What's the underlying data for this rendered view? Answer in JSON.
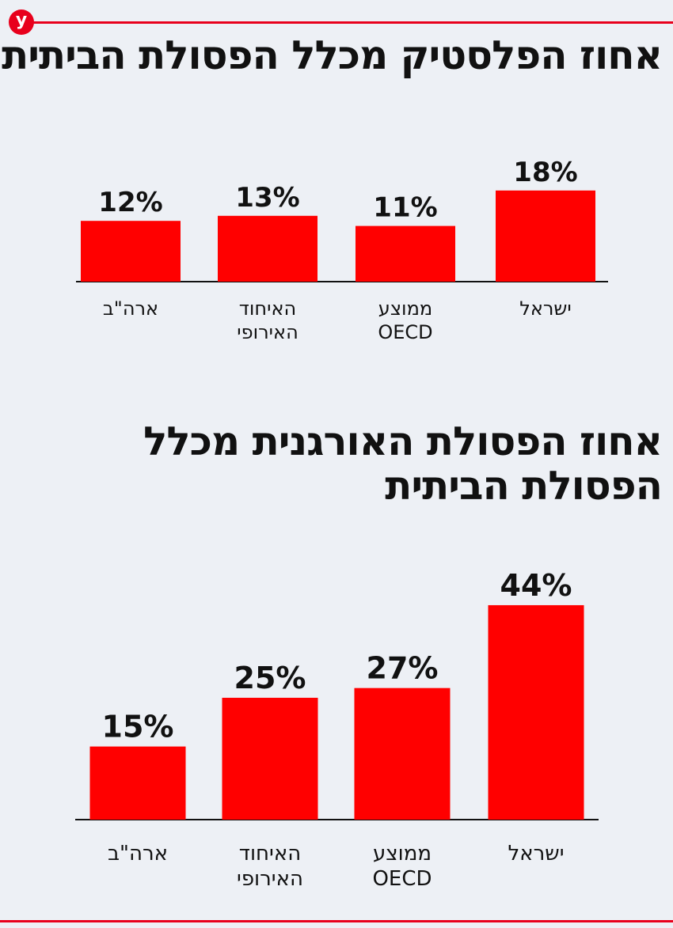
{
  "brand": {
    "logo_letter": "y",
    "accent": "#e8001c",
    "background": "#edf0f5"
  },
  "chart_data": [
    {
      "type": "bar",
      "title": "אחוז הפלסטיק מכלל הפסולת הביתית",
      "categories": [
        "ארה\"ב",
        "האיחוד האירופי",
        "ממוצע OECD",
        "ישראל"
      ],
      "category_lines": [
        [
          "ארה\"ב"
        ],
        [
          "האיחוד",
          "האירופי"
        ],
        [
          "ממוצע",
          "OECD"
        ],
        [
          "ישראל"
        ]
      ],
      "values": [
        12,
        13,
        11,
        18
      ],
      "value_labels": [
        "12%",
        "13%",
        "11%",
        "18%"
      ],
      "unit": "%",
      "bar_color": "#ff0000",
      "grid": false
    },
    {
      "type": "bar",
      "title": "אחוז הפסולת האורגנית מכלל הפסולת הביתית",
      "title_lines": "אחוז הפסולת האורגנית מכלל\nהפסולת הביתית",
      "categories": [
        "ארה\"ב",
        "האיחוד האירופי",
        "ממוצע OECD",
        "ישראל"
      ],
      "category_lines": [
        [
          "ארה\"ב"
        ],
        [
          "האיחוד",
          "האירופי"
        ],
        [
          "ממוצע",
          "OECD"
        ],
        [
          "ישראל"
        ]
      ],
      "values": [
        15,
        25,
        27,
        44
      ],
      "value_labels": [
        "15%",
        "25%",
        "27%",
        "44%"
      ],
      "unit": "%",
      "bar_color": "#ff0000",
      "grid": false
    }
  ]
}
